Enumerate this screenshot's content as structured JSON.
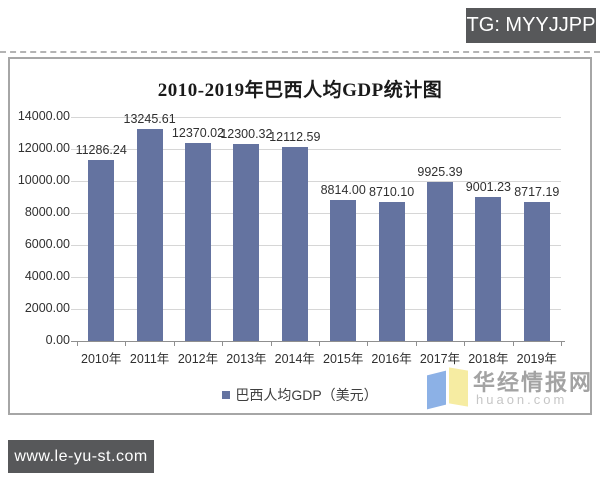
{
  "overlays": {
    "tg_badge": "TG: MYYJJPP",
    "site_badge": "www.le-yu-st.com"
  },
  "watermark": {
    "name": "华经情报网",
    "domain": "huaon.com",
    "logo_blue": "#8cb1e6",
    "logo_yellow": "#f6eca2"
  },
  "chart_data": {
    "type": "bar",
    "title": "2010-2019年巴西人均GDP统计图",
    "categories": [
      "2010年",
      "2011年",
      "2012年",
      "2013年",
      "2014年",
      "2015年",
      "2016年",
      "2017年",
      "2018年",
      "2019年"
    ],
    "values": [
      11286.24,
      13245.61,
      12370.02,
      12300.32,
      12112.59,
      8814.0,
      8710.1,
      9925.39,
      9001.23,
      8717.19
    ],
    "value_labels": [
      "11286.24",
      "13245.61",
      "12370.02",
      "12300.32",
      "12112.59",
      "8814.00",
      "8710.10",
      "9925.39",
      "9001.23",
      "8717.19"
    ],
    "yticks": [
      "14000.00",
      "12000.00",
      "10000.00",
      "8000.00",
      "6000.00",
      "4000.00",
      "2000.00",
      "0.00"
    ],
    "ylim": [
      0,
      14000
    ],
    "ytick_step": 2000,
    "legend": "巴西人均GDP（美元）",
    "legend_position": "bottom",
    "grid": true,
    "bar_color": "#6473a0",
    "xlabel": "",
    "ylabel": ""
  }
}
